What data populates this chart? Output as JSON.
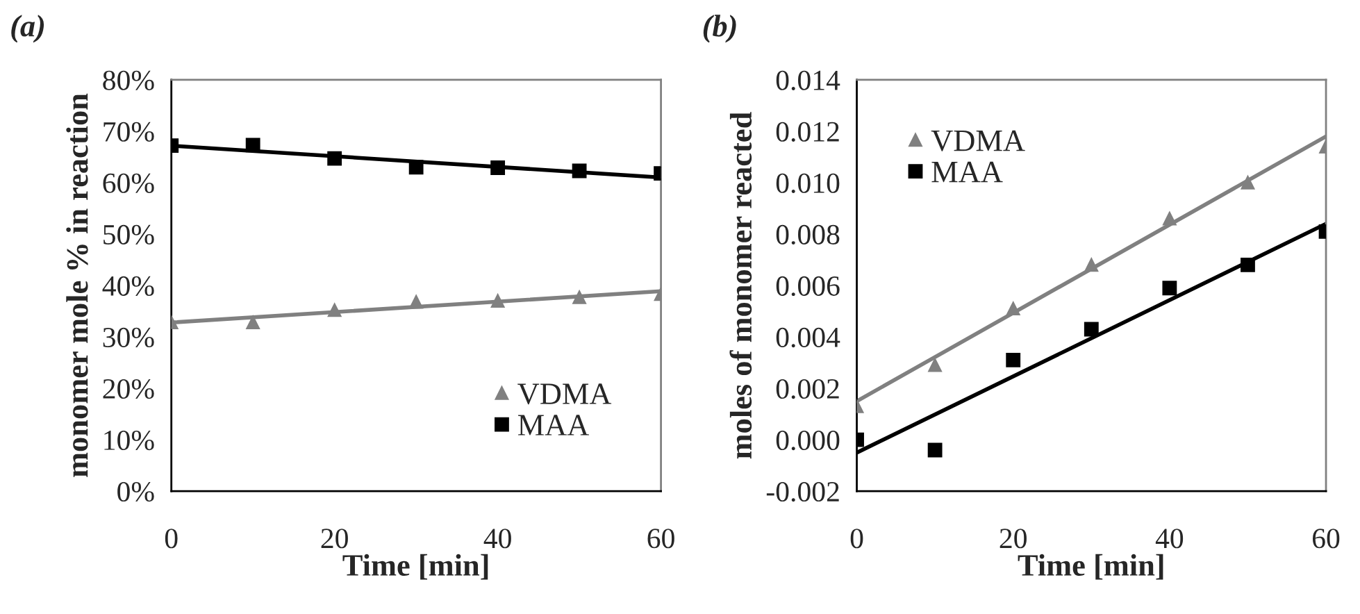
{
  "chart_data": [
    {
      "type": "scatter",
      "title": "(a)",
      "xlabel": "Time [min]",
      "ylabel": "monomer mole % in reaction",
      "xlim": [
        0,
        60
      ],
      "xticks": [
        0,
        20,
        40,
        60
      ],
      "ylim": [
        0,
        80
      ],
      "yticks": [
        {
          "value": 0,
          "label": "0%"
        },
        {
          "value": 10,
          "label": "10%"
        },
        {
          "value": 20,
          "label": "20%"
        },
        {
          "value": 30,
          "label": "30%"
        },
        {
          "value": 40,
          "label": "40%"
        },
        {
          "value": 50,
          "label": "50%"
        },
        {
          "value": 60,
          "label": "60%"
        },
        {
          "value": 70,
          "label": "70%"
        },
        {
          "value": 80,
          "label": "80%"
        }
      ],
      "grid": false,
      "legend": "bottom right",
      "series": [
        {
          "name": "VDMA",
          "color": "#808080",
          "marker": "triangle",
          "x": [
            0,
            10,
            20,
            30,
            40,
            50,
            60
          ],
          "values": [
            32.8,
            32.8,
            35.2,
            36.8,
            37.0,
            37.7,
            38.3
          ]
        },
        {
          "name": "MAA",
          "color": "#000000",
          "marker": "square",
          "x": [
            0,
            10,
            20,
            30,
            40,
            50,
            60
          ],
          "values": [
            67.2,
            67.3,
            64.7,
            63.0,
            62.9,
            62.3,
            61.8
          ]
        },
        {
          "type": "line",
          "color": "#808080",
          "marker": "none",
          "x": [
            0,
            60
          ],
          "values": [
            32.8,
            38.9
          ]
        },
        {
          "type": "line",
          "color": "#000000",
          "marker": "none",
          "x": [
            0,
            60
          ],
          "values": [
            67.2,
            61.0
          ]
        }
      ]
    },
    {
      "type": "scatter",
      "title": "(b)",
      "xlabel": "Time [min]",
      "ylabel": "moles of monomer reacted",
      "xlim": [
        0,
        60
      ],
      "xticks": [
        0,
        20,
        40,
        60
      ],
      "ylim": [
        -0.002,
        0.014
      ],
      "yticks": [
        {
          "value": -0.002,
          "label": "-0.002"
        },
        {
          "value": 0,
          "label": "0.000"
        },
        {
          "value": 0.002,
          "label": "0.002"
        },
        {
          "value": 0.004,
          "label": "0.004"
        },
        {
          "value": 0.006,
          "label": "0.006"
        },
        {
          "value": 0.008,
          "label": "0.008"
        },
        {
          "value": 0.01,
          "label": "0.010"
        },
        {
          "value": 0.012,
          "label": "0.012"
        },
        {
          "value": 0.014,
          "label": "0.014"
        }
      ],
      "grid": false,
      "legend": "top left",
      "series": [
        {
          "name": "VDMA",
          "color": "#808080",
          "marker": "triangle",
          "x": [
            0,
            10,
            20,
            30,
            40,
            50,
            60
          ],
          "values": [
            0.0013,
            0.0029,
            0.0051,
            0.0068,
            0.0086,
            0.01,
            0.0114
          ]
        },
        {
          "name": "MAA",
          "color": "#000000",
          "marker": "square",
          "x": [
            0,
            10,
            20,
            30,
            40,
            50,
            60
          ],
          "values": [
            0.0,
            -0.0004,
            0.0031,
            0.0043,
            0.0059,
            0.0068,
            0.0081
          ]
        },
        {
          "type": "line",
          "color": "#808080",
          "marker": "none",
          "x": [
            0,
            60
          ],
          "values": [
            0.0015,
            0.0118
          ]
        },
        {
          "type": "line",
          "color": "#000000",
          "marker": "none",
          "x": [
            0,
            60
          ],
          "values": [
            -0.0005,
            0.0084
          ]
        }
      ]
    }
  ]
}
